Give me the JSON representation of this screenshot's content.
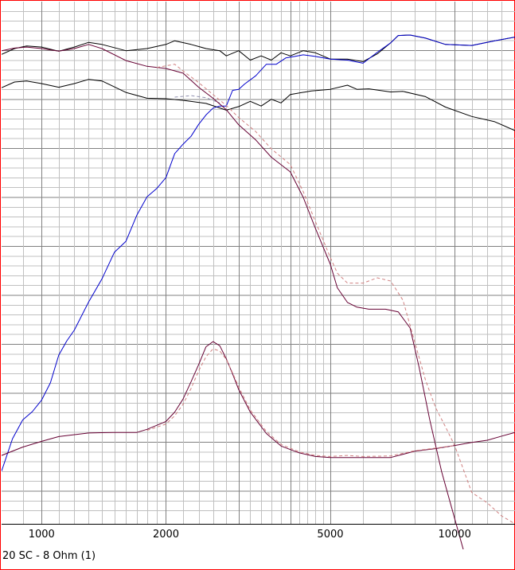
{
  "caption": "20 SC - 8 Ohm (1)",
  "chart_data": {
    "type": "line",
    "x_scale": "log",
    "xlim": [
      800,
      14000
    ],
    "ylim": [
      0,
      1
    ],
    "x_tick_labels": [
      {
        "x": 1000,
        "label": "1000"
      },
      {
        "x": 2000,
        "label": "2000"
      },
      {
        "x": 5000,
        "label": "5000"
      },
      {
        "x": 10000,
        "label": "10000"
      }
    ],
    "major_x_gridlines": [
      1000,
      2000,
      3000,
      4000,
      5000,
      10000
    ],
    "minor_x_gridlines": [
      900,
      1100,
      1200,
      1300,
      1400,
      1500,
      1600,
      1700,
      1800,
      1900,
      2200,
      2400,
      2600,
      2800,
      3200,
      3400,
      3600,
      3800,
      4200,
      4400,
      4600,
      4800,
      6000,
      7000,
      8000,
      9000,
      11000,
      12000,
      13000
    ],
    "grid": true,
    "y_scale": "unlabeled",
    "series": [
      {
        "color": "#000000",
        "dash": false,
        "x": [
          800,
          860,
          920,
          1000,
          1100,
          1200,
          1300,
          1400,
          1600,
          1800,
          2000,
          2100,
          2300,
          2500,
          2700,
          2800,
          3000,
          3200,
          3400,
          3600,
          3800,
          4000,
          4300,
          4600,
          5000,
          5500,
          6000,
          6500,
          7000,
          7300,
          7800,
          8500,
          9500,
          11000,
          12500,
          14000
        ],
        "y": [
          0.899,
          0.91,
          0.915,
          0.913,
          0.905,
          0.913,
          0.922,
          0.918,
          0.906,
          0.91,
          0.918,
          0.925,
          0.918,
          0.91,
          0.906,
          0.896,
          0.906,
          0.888,
          0.896,
          0.888,
          0.902,
          0.896,
          0.906,
          0.902,
          0.89,
          0.89,
          0.885,
          0.9,
          0.921,
          0.935,
          0.936,
          0.93,
          0.918,
          0.916,
          0.925,
          0.932
        ]
      },
      {
        "color": "#000000",
        "dash": false,
        "x": [
          800,
          860,
          920,
          1000,
          1100,
          1200,
          1300,
          1400,
          1600,
          1800,
          2000,
          2200,
          2500,
          2800,
          3000,
          3200,
          3400,
          3600,
          3800,
          4000,
          4500,
          5000,
          5500,
          5800,
          6200,
          7000,
          7500,
          8500,
          9500,
          11000,
          12500,
          14000
        ],
        "y": [
          0.835,
          0.846,
          0.848,
          0.843,
          0.836,
          0.843,
          0.851,
          0.848,
          0.826,
          0.815,
          0.814,
          0.811,
          0.805,
          0.792,
          0.799,
          0.809,
          0.8,
          0.813,
          0.806,
          0.822,
          0.829,
          0.832,
          0.84,
          0.832,
          0.833,
          0.827,
          0.828,
          0.818,
          0.798,
          0.78,
          0.77,
          0.753
        ]
      },
      {
        "color": "#9090b0",
        "dash": true,
        "x": [
          2100,
          2300,
          2500,
          2700
        ],
        "y": [
          0.817,
          0.82,
          0.816,
          0.806
        ]
      },
      {
        "color": "#0000cc",
        "dash": false,
        "x": [
          800,
          850,
          900,
          950,
          1000,
          1050,
          1100,
          1150,
          1200,
          1300,
          1400,
          1500,
          1600,
          1700,
          1800,
          1900,
          2000,
          2100,
          2200,
          2300,
          2400,
          2500,
          2600,
          2700,
          2800,
          2900,
          3000,
          3100,
          3300,
          3500,
          3700,
          3900,
          4100,
          4300,
          4600,
          5000,
          5500,
          6000,
          6500,
          7000,
          7300,
          7800,
          8500,
          9500,
          11000,
          12500,
          14000
        ],
        "y": [
          0.101,
          0.163,
          0.199,
          0.215,
          0.237,
          0.27,
          0.323,
          0.35,
          0.371,
          0.425,
          0.469,
          0.52,
          0.541,
          0.591,
          0.626,
          0.642,
          0.663,
          0.709,
          0.727,
          0.742,
          0.765,
          0.783,
          0.796,
          0.8,
          0.8,
          0.83,
          0.832,
          0.842,
          0.858,
          0.88,
          0.88,
          0.892,
          0.895,
          0.898,
          0.895,
          0.89,
          0.888,
          0.882,
          0.903,
          0.921,
          0.935,
          0.936,
          0.93,
          0.918,
          0.916,
          0.925,
          0.932
        ]
      },
      {
        "color": "#660033",
        "dash": false,
        "x": [
          800,
          860,
          920,
          1000,
          1100,
          1200,
          1300,
          1400,
          1600,
          1800,
          2000,
          2200,
          2400,
          2600,
          2800,
          3000,
          3300,
          3600,
          4000,
          4300,
          4600,
          5000,
          5200,
          5500,
          5800,
          6200,
          6800,
          7300,
          7800,
          8200,
          8700,
          9300,
          10000,
          10500,
          11000,
          12000,
          14000
        ],
        "y": [
          0.906,
          0.911,
          0.913,
          0.91,
          0.905,
          0.91,
          0.918,
          0.91,
          0.887,
          0.876,
          0.872,
          0.863,
          0.836,
          0.815,
          0.793,
          0.764,
          0.735,
          0.702,
          0.674,
          0.625,
          0.566,
          0.497,
          0.452,
          0.424,
          0.415,
          0.411,
          0.411,
          0.406,
          0.375,
          0.3,
          0.2,
          0.1,
          0.01,
          -0.05,
          -0.05,
          -0.05,
          -0.05
        ]
      },
      {
        "color": "#d08080",
        "dash": true,
        "x": [
          1900,
          2000,
          2100,
          2200,
          2400,
          2600,
          2800,
          3000,
          3300,
          3600,
          4000,
          4300,
          4600,
          5000,
          5200,
          5500,
          6000,
          6500,
          7000,
          7500,
          8000,
          8500,
          9000,
          9500,
          10000,
          10500,
          11000,
          12000,
          13000,
          14000
        ],
        "y": [
          0.874,
          0.877,
          0.88,
          0.867,
          0.845,
          0.822,
          0.801,
          0.778,
          0.751,
          0.718,
          0.688,
          0.636,
          0.579,
          0.51,
          0.48,
          0.461,
          0.461,
          0.471,
          0.465,
          0.428,
          0.349,
          0.275,
          0.222,
          0.186,
          0.15,
          0.104,
          0.06,
          0.04,
          0.015,
          0.0
        ]
      },
      {
        "color": "#660033",
        "dash": false,
        "x": [
          800,
          900,
          1000,
          1100,
          1300,
          1500,
          1700,
          1800,
          2000,
          2100,
          2200,
          2300,
          2400,
          2500,
          2600,
          2700,
          2800,
          2900,
          3000,
          3200,
          3500,
          3800,
          4200,
          4600,
          5000,
          5500,
          6000,
          7000,
          8000,
          9000,
          10000,
          11000,
          12000,
          13000,
          14000
        ],
        "y": [
          0.131,
          0.147,
          0.158,
          0.167,
          0.174,
          0.175,
          0.175,
          0.181,
          0.196,
          0.214,
          0.239,
          0.272,
          0.305,
          0.339,
          0.349,
          0.341,
          0.316,
          0.287,
          0.257,
          0.214,
          0.173,
          0.149,
          0.136,
          0.129,
          0.127,
          0.127,
          0.127,
          0.127,
          0.139,
          0.144,
          0.15,
          0.156,
          0.16,
          0.168,
          0.175
        ]
      },
      {
        "color": "#d08080",
        "dash": true,
        "x": [
          1800,
          2000,
          2100,
          2200,
          2300,
          2400,
          2500,
          2600,
          2700,
          2800,
          2900,
          3000,
          3200,
          3500,
          3800,
          4200,
          4600,
          5000,
          5500,
          6000,
          7000,
          8000,
          9000,
          10000
        ],
        "y": [
          0.179,
          0.191,
          0.207,
          0.229,
          0.259,
          0.293,
          0.32,
          0.335,
          0.331,
          0.315,
          0.289,
          0.262,
          0.218,
          0.177,
          0.152,
          0.138,
          0.131,
          0.129,
          0.131,
          0.129,
          0.13,
          0.14,
          0.145,
          0.15
        ]
      }
    ]
  }
}
